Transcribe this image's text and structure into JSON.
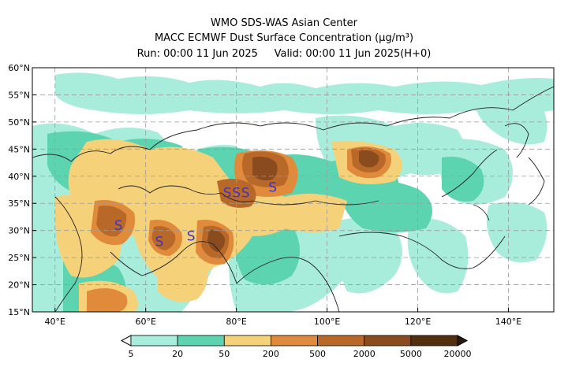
{
  "header": {
    "line1": "WMO SDS-WAS Asian Center",
    "line2": "MACC ECMWF Dust Surface Concentration (μg/m³)",
    "run": "Run: 00:00 11 Jun 2025",
    "valid": "Valid: 00:00 11 Jun 2025(H+0)"
  },
  "map": {
    "lon_range": [
      35,
      150
    ],
    "lat_range": [
      15,
      60
    ],
    "lat_labels": [
      "15°N",
      "20°N",
      "25°N",
      "30°N",
      "35°N",
      "40°N",
      "45°N",
      "50°N",
      "55°N",
      "60°N"
    ],
    "lon_labels": [
      "40°E",
      "60°E",
      "80°E",
      "100°E",
      "120°E",
      "140°E"
    ],
    "dust_source_marker": "S",
    "dust_sources": [
      {
        "lon": 54,
        "lat": 31
      },
      {
        "lon": 63,
        "lat": 28
      },
      {
        "lon": 70,
        "lat": 29
      },
      {
        "lon": 78,
        "lat": 37
      },
      {
        "lon": 80,
        "lat": 37
      },
      {
        "lon": 82,
        "lat": 37
      },
      {
        "lon": 88,
        "lat": 38
      }
    ]
  },
  "colorbar": {
    "labels": [
      "5",
      "20",
      "50",
      "200",
      "500",
      "2000",
      "5000",
      "20000"
    ],
    "colors": [
      "#a8ecdc",
      "#5dd4b0",
      "#f5d27a",
      "#e08a3c",
      "#b8692a",
      "#8a4b1e",
      "#52300f"
    ]
  }
}
